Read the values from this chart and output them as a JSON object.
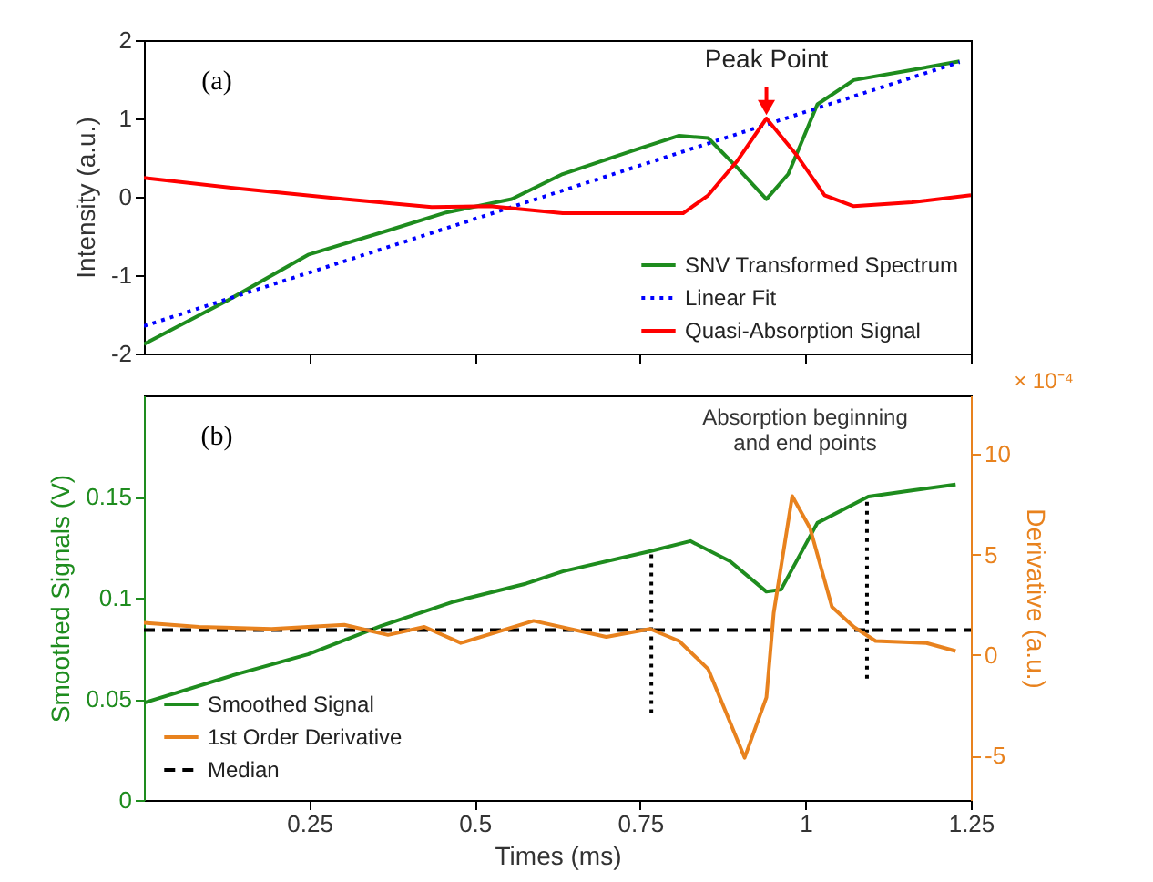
{
  "chart_data": [
    {
      "type": "line",
      "ylabel": "Intensity (a.u.)",
      "xlim": [
        0,
        1.25
      ],
      "xticks": [
        0.25,
        0.5,
        0.75,
        1,
        1.25
      ],
      "ylim": [
        -2,
        2
      ],
      "yticks": [
        -2,
        -1,
        0,
        1,
        2
      ],
      "grid": false,
      "legend": "bottom right",
      "tick_labels": "y",
      "annotations": [
        "(a)",
        {
          "text": "Peak Point",
          "x": 0.941,
          "y": 1.0
        }
      ],
      "series": [
        {
          "name": "SNV Transformed Spectrum",
          "color": "#1e8c1e",
          "line_style": "solid",
          "x": [
            0,
            0.127,
            0.248,
            0.369,
            0.457,
            0.556,
            0.633,
            0.743,
            0.809,
            0.853,
            0.897,
            0.941,
            0.974,
            1.018,
            1.073,
            1.161,
            1.233
          ],
          "values": [
            -1.88,
            -1.32,
            -0.74,
            -0.43,
            -0.2,
            -0.03,
            0.29,
            0.6,
            0.78,
            0.75,
            0.37,
            -0.03,
            0.29,
            1.18,
            1.49,
            1.62,
            1.73
          ]
        },
        {
          "name": "Linear Fit",
          "color": "#0000ff",
          "line_style": "dotted",
          "x": [
            0,
            1.233
          ],
          "values": [
            -1.65,
            1.72
          ]
        },
        {
          "name": "Quasi-Absorption Signal",
          "color": "#ff0000",
          "line_style": "solid",
          "x": [
            0,
            0.138,
            0.303,
            0.435,
            0.523,
            0.633,
            0.815,
            0.853,
            0.897,
            0.941,
            0.985,
            1.029,
            1.073,
            1.161,
            1.25
          ],
          "values": [
            0.24,
            0.11,
            -0.03,
            -0.13,
            -0.12,
            -0.21,
            -0.21,
            0.02,
            0.46,
            1.0,
            0.55,
            0.02,
            -0.12,
            -0.07,
            0.02
          ]
        }
      ]
    },
    {
      "type": "line",
      "xlabel": "Times (ms)",
      "ylabel": "Smoothed Signals (V)",
      "y2label": "Derivative (a.u.)",
      "xlim": [
        0,
        1.25
      ],
      "xticks": [
        0.25,
        0.5,
        0.75,
        1,
        1.25
      ],
      "ylim": [
        0,
        0.2
      ],
      "yticks": [
        0,
        0.05,
        0.1,
        0.15
      ],
      "y2lim": [
        -7.2,
        12.9
      ],
      "y2ticks": [
        -5,
        0,
        5,
        10
      ],
      "grid": false,
      "legend": "bottom left",
      "annotations": [
        "(b)",
        "Absorption beginning\nand end points",
        "× 10⁻⁴"
      ],
      "series": [
        {
          "name": "Smoothed Signal",
          "color": "#1e8c1e",
          "line_style": "solid",
          "x": [
            0,
            0.138,
            0.248,
            0.358,
            0.468,
            0.578,
            0.633,
            0.765,
            0.826,
            0.886,
            0.941,
            0.963,
            1.018,
            1.095,
            1.161,
            1.227
          ],
          "values": [
            0.048,
            0.062,
            0.072,
            0.086,
            0.098,
            0.107,
            0.113,
            0.123,
            0.128,
            0.118,
            0.103,
            0.104,
            0.137,
            0.15,
            0.153,
            0.156
          ]
        },
        {
          "name": "1st Order Derivative",
          "color": "#e8821e",
          "line_style": "solid",
          "axis": "y2",
          "x": [
            0,
            0.083,
            0.193,
            0.303,
            0.369,
            0.424,
            0.479,
            0.589,
            0.699,
            0.765,
            0.809,
            0.853,
            0.908,
            0.941,
            0.952,
            0.98,
            1.007,
            1.04,
            1.073,
            1.106,
            1.183,
            1.227
          ],
          "values": [
            1.6,
            1.4,
            1.3,
            1.5,
            1.0,
            1.4,
            0.6,
            1.7,
            0.9,
            1.3,
            0.7,
            -0.7,
            -5.1,
            -2.1,
            2.1,
            7.9,
            6.3,
            2.4,
            1.4,
            0.7,
            0.6,
            0.2
          ]
        },
        {
          "name": "Median",
          "color": "#000000",
          "line_style": "dashed",
          "x": [
            0,
            1.25
          ],
          "values": [
            0.084,
            0.084
          ]
        },
        {
          "color": "#000000",
          "line_style": "dotted",
          "x": [
            0.767,
            0.767
          ],
          "values": [
            0.043,
            0.122
          ]
        },
        {
          "color": "#000000",
          "line_style": "dotted",
          "x": [
            1.093,
            1.093
          ],
          "values": [
            0.06,
            0.15
          ]
        }
      ]
    }
  ]
}
